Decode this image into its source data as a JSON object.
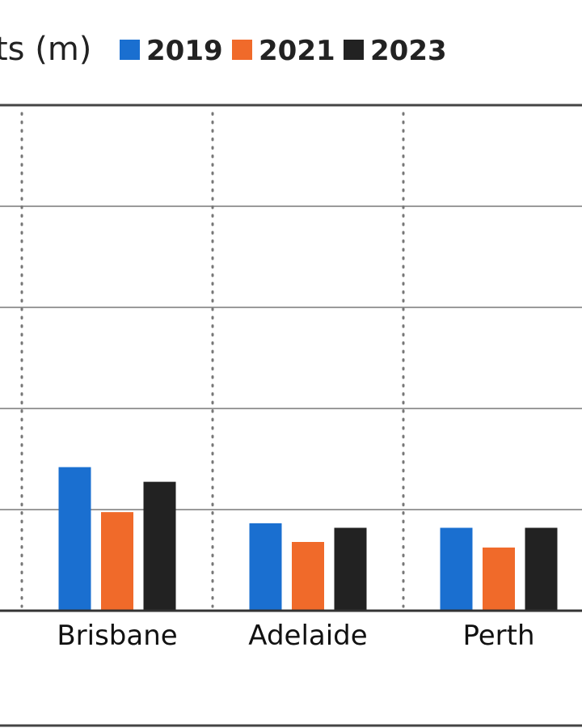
{
  "chart_data": {
    "type": "bar",
    "ylabel": "ts (m)",
    "categories": [
      "Brisbane",
      "Adelaide",
      "Perth"
    ],
    "series": [
      {
        "name": "2019",
        "color": "#1a6fd0",
        "values": [
          2.84,
          1.73,
          1.64
        ]
      },
      {
        "name": "2021",
        "color": "#f06a2a",
        "values": [
          1.95,
          1.36,
          1.25
        ]
      },
      {
        "name": "2023",
        "color": "#222222",
        "values": [
          2.55,
          1.64,
          1.64
        ]
      }
    ],
    "ylim": [
      0,
      10
    ],
    "grid": true,
    "legend_position": "top"
  }
}
